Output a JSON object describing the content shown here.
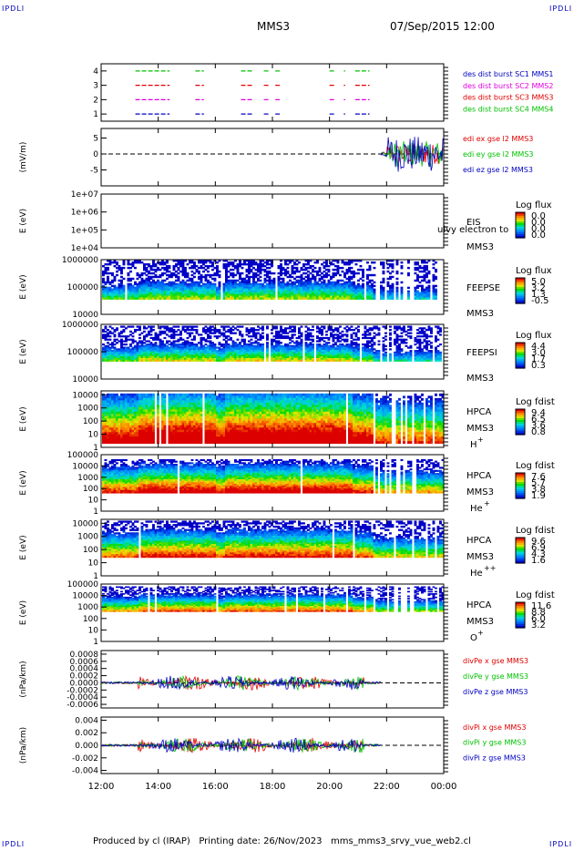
{
  "corners": {
    "tl": "IPDLI",
    "tr": "IPDLI",
    "bl": "IPDLI",
    "br": "IPDLI"
  },
  "header": {
    "mission": "MMS3",
    "datetime": "07/Sep/2015 12:00"
  },
  "footer": "Produced by cl (IRAP)   Printing date: 26/Nov/2023   mms_mms3_srvy_vue_web2.cl",
  "time_axis": {
    "ticks": [
      "12:00",
      "14:00",
      "16:00",
      "18:00",
      "20:00",
      "22:00",
      "00:00"
    ],
    "tick_hours": [
      12,
      14,
      16,
      18,
      20,
      22,
      24
    ],
    "range_hours": [
      12,
      24
    ]
  },
  "colors": {
    "red": "#e00000",
    "green": "#00c000",
    "blue": "#0000c0",
    "magenta": "#e000e0"
  },
  "chart_data": [
    {
      "id": "burst",
      "type": "timeline",
      "ylabel": "",
      "yticks": [
        "4",
        "3",
        "2",
        "1"
      ],
      "ytick_values": [
        4,
        3,
        2,
        1
      ],
      "ylim": [
        0.5,
        4.5
      ],
      "series": [
        {
          "name": "des dist burst SC1 MMS1",
          "level": 1,
          "color": "#0000c0",
          "intervals": [
            [
              13.2,
              14.4
            ],
            [
              15.3,
              15.6
            ],
            [
              16.9,
              17.3
            ],
            [
              17.7,
              17.9
            ],
            [
              18.1,
              18.3
            ],
            [
              20.0,
              20.2
            ],
            [
              20.5,
              20.55
            ],
            [
              20.9,
              21.4
            ]
          ]
        },
        {
          "name": "des dist burst SC2 MMS2",
          "level": 2,
          "color": "#e000e0",
          "intervals": [
            [
              13.2,
              14.4
            ],
            [
              15.3,
              15.6
            ],
            [
              16.9,
              17.3
            ],
            [
              17.7,
              17.9
            ],
            [
              18.1,
              18.3
            ],
            [
              20.0,
              20.2
            ],
            [
              20.5,
              20.55
            ],
            [
              20.9,
              21.4
            ]
          ]
        },
        {
          "name": "des dist burst SC3 MMS3",
          "level": 3,
          "color": "#e00000",
          "intervals": [
            [
              13.2,
              14.4
            ],
            [
              15.3,
              15.6
            ],
            [
              16.9,
              17.3
            ],
            [
              17.7,
              17.9
            ],
            [
              18.1,
              18.3
            ],
            [
              20.0,
              20.2
            ],
            [
              20.5,
              20.55
            ],
            [
              20.9,
              21.4
            ]
          ]
        },
        {
          "name": "des dist burst SC4 MMS4",
          "level": 4,
          "color": "#00c000",
          "intervals": [
            [
              13.2,
              14.4
            ],
            [
              15.3,
              15.6
            ],
            [
              16.9,
              17.3
            ],
            [
              17.7,
              17.9
            ],
            [
              18.1,
              18.3
            ],
            [
              20.0,
              20.2
            ],
            [
              20.5,
              20.55
            ],
            [
              20.9,
              21.4
            ]
          ]
        }
      ]
    },
    {
      "id": "edi",
      "type": "line",
      "ylabel": "(mV/m)",
      "yticks": [
        "5",
        "0",
        "-5"
      ],
      "ytick_values": [
        5,
        0,
        -5
      ],
      "ylim": [
        -10,
        8
      ],
      "series": [
        {
          "name": "edi ex gse l2 MMS3",
          "color": "#e00000",
          "start": 21.8,
          "end": 24.0,
          "amp": 4
        },
        {
          "name": "edi ey gse l2 MMS3",
          "color": "#00c000",
          "start": 21.8,
          "end": 24.0,
          "amp": 5
        },
        {
          "name": "edi ez gse l2 MMS3",
          "color": "#0000c0",
          "start": 21.8,
          "end": 24.0,
          "amp": 7
        }
      ]
    },
    {
      "id": "eis",
      "type": "heatmap",
      "ylabel": "E (eV)",
      "yticks": [
        "1e+07",
        "1e+06",
        "1e+05",
        "1e+04"
      ],
      "ytick_values": [
        7,
        6,
        5,
        4
      ],
      "ylim": [
        4,
        7
      ],
      "instrument": "EIS",
      "instrument2": "MMS3",
      "overlay_text": "ulvy electron to",
      "cbar_title": "Log flux",
      "cbar_ticks": [
        "0.0",
        "0.0",
        "0.0",
        "0.0"
      ],
      "empty": true
    },
    {
      "id": "feepse",
      "type": "heatmap",
      "ylabel": "E (eV)",
      "yticks": [
        "1000000",
        "100000",
        "10000"
      ],
      "ytick_values": [
        6,
        5,
        4
      ],
      "ylim": [
        4,
        6
      ],
      "instrument": "FEEPSE",
      "instrument2": "MMS3",
      "cbar_title": "Log flux",
      "cbar_ticks": [
        "5.0",
        "3.2",
        "1.3",
        "-0.5"
      ],
      "band": [
        4.55,
        6.0
      ],
      "base": 0.25,
      "top_fill": 0.15
    },
    {
      "id": "feepsi",
      "type": "heatmap",
      "ylabel": "E (eV)",
      "yticks": [
        "1000000",
        "100000",
        "10000"
      ],
      "ytick_values": [
        6,
        5,
        4
      ],
      "ylim": [
        4,
        6
      ],
      "instrument": "FEEPSI",
      "instrument2": "MMS3",
      "cbar_title": "Log flux",
      "cbar_ticks": [
        "4.4",
        "3.0",
        "1.7",
        "0.3"
      ],
      "band": [
        4.65,
        5.95
      ],
      "base": 0.3,
      "top_fill": 0.2
    },
    {
      "id": "hpca_h",
      "type": "heatmap",
      "ylabel": "E (eV)",
      "yticks": [
        "10000",
        "1000",
        "100",
        "10",
        "1"
      ],
      "ytick_values": [
        4,
        3,
        2,
        1,
        0
      ],
      "ylim": [
        0,
        4.3
      ],
      "instrument": "HPCA",
      "instrument2": "MMS3",
      "species": "H",
      "species_sup": "+",
      "cbar_title": "Log fdist",
      "cbar_ticks": [
        "9.4",
        "6.5",
        "3.6",
        "0.8"
      ],
      "band": [
        0.3,
        4.1
      ],
      "base": 0.85,
      "top_fill": 0.55
    },
    {
      "id": "hpca_he",
      "type": "heatmap",
      "ylabel": "E (eV)",
      "yticks": [
        "100000",
        "10000",
        "1000",
        "100",
        "10",
        "1"
      ],
      "ytick_values": [
        5,
        4,
        3,
        2,
        1,
        0
      ],
      "ylim": [
        0,
        5
      ],
      "instrument": "HPCA",
      "instrument2": "MMS3",
      "species": "He",
      "species_sup": "+",
      "cbar_title": "Log fdist",
      "cbar_ticks": [
        "7.6",
        "5.7",
        "3.8",
        "1.9"
      ],
      "band": [
        1.6,
        4.6
      ],
      "base": 0.7,
      "top_fill": 0.4
    },
    {
      "id": "hpca_hepp",
      "type": "heatmap",
      "ylabel": "E (eV)",
      "yticks": [
        "10000",
        "1000",
        "100",
        "10",
        "1"
      ],
      "ytick_values": [
        4,
        3,
        2,
        1,
        0
      ],
      "ylim": [
        0,
        4.3
      ],
      "instrument": "HPCA",
      "instrument2": "MMS3",
      "species": "He",
      "species_sup": "++",
      "cbar_title": "Log fdist",
      "cbar_ticks": [
        "9.6",
        "6.9",
        "4.3",
        "1.6"
      ],
      "band": [
        1.4,
        4.2
      ],
      "base": 0.6,
      "top_fill": 0.35
    },
    {
      "id": "hpca_o",
      "type": "heatmap",
      "ylabel": "E (eV)",
      "yticks": [
        "100000",
        "10000",
        "1000",
        "100",
        "10",
        "1"
      ],
      "ytick_values": [
        5,
        4,
        3,
        2,
        1,
        0
      ],
      "ylim": [
        0,
        5
      ],
      "instrument": "HPCA",
      "instrument2": "MMS3",
      "species": "O",
      "species_sup": "+",
      "cbar_title": "Log fdist",
      "cbar_ticks": [
        "11.6",
        "8.8",
        "6.0",
        "3.2"
      ],
      "band": [
        2.6,
        4.8
      ],
      "base": 0.5,
      "top_fill": 0.3
    },
    {
      "id": "divpe",
      "type": "line",
      "ylabel": "(nPa/km)",
      "yticks": [
        "0.0008",
        "0.0006",
        "0.0004",
        "0.0002",
        "0.0000",
        "-0.0002",
        "-0.0004",
        "-0.0006"
      ],
      "ytick_values": [
        0.0008,
        0.0006,
        0.0004,
        0.0002,
        0.0,
        -0.0002,
        -0.0004,
        -0.0006
      ],
      "ylim": [
        -0.0007,
        0.0009
      ],
      "series": [
        {
          "name": "divPe x gse MMS3",
          "color": "#e00000",
          "start": 12.0,
          "end": 21.8,
          "amp": 0.0002
        },
        {
          "name": "divPe y gse MMS3",
          "color": "#00c000",
          "start": 12.0,
          "end": 21.8,
          "amp": 0.0002
        },
        {
          "name": "divPe z gse MMS3",
          "color": "#0000c0",
          "start": 12.0,
          "end": 21.8,
          "amp": 0.0002
        }
      ]
    },
    {
      "id": "divpi",
      "type": "line",
      "ylabel": "(nPa/km)",
      "yticks": [
        "0.004",
        "0.002",
        "0.000",
        "-0.002",
        "-0.004"
      ],
      "ytick_values": [
        0.004,
        0.002,
        0.0,
        -0.002,
        -0.004
      ],
      "ylim": [
        -0.0045,
        0.0045
      ],
      "series": [
        {
          "name": "divPi x gse MMS3",
          "color": "#e00000",
          "start": 12.0,
          "end": 21.8,
          "amp": 0.0012
        },
        {
          "name": "divPi y gse MMS3",
          "color": "#00c000",
          "start": 12.0,
          "end": 21.8,
          "amp": 0.0012
        },
        {
          "name": "divPi z gse MMS3",
          "color": "#0000c0",
          "start": 12.0,
          "end": 21.8,
          "amp": 0.0012
        }
      ]
    }
  ]
}
